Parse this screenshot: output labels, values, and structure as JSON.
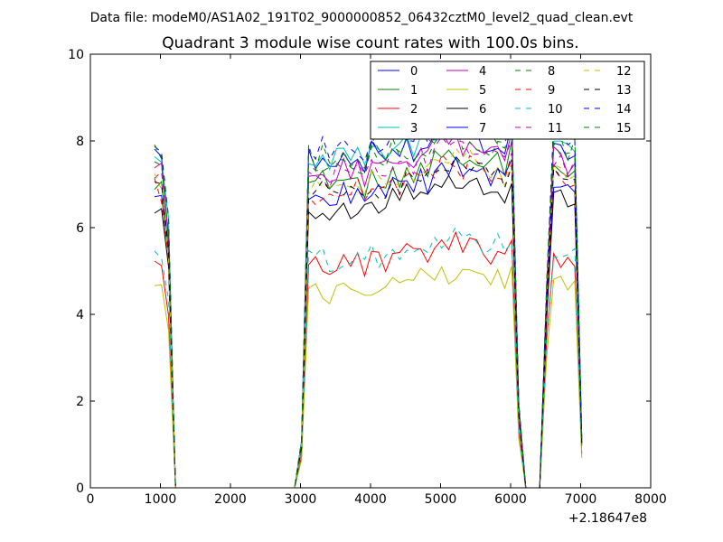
{
  "suptitle": "Data file: modeM0/AS1A02_191T02_9000000852_06432cztM0_level2_quad_clean.evt",
  "title": "Quadrant 3 module wise count rates with 100.0s bins.",
  "x_offset_label": "+2.18647e8",
  "chart_data": {
    "type": "line",
    "title": "Quadrant 3 module wise count rates with 100.0s bins.",
    "xlabel": "",
    "ylabel": "",
    "xlim": [
      0,
      8000
    ],
    "ylim": [
      0,
      10
    ],
    "x_ticks": [
      "0",
      "1000",
      "2000",
      "3000",
      "4000",
      "5000",
      "6000",
      "7000",
      "8000"
    ],
    "y_ticks": [
      "0",
      "2",
      "4",
      "6",
      "8",
      "10"
    ],
    "legend_position": "top-right",
    "grid": false,
    "segments": [
      {
        "x": [
          916,
          1016,
          1116,
          1216,
          1316
        ],
        "levels": [
          1.0,
          0.99,
          0.78,
          0.0,
          0.0
        ]
      },
      {
        "x": [
          1316,
          1416,
          1516,
          1616,
          1716,
          1816,
          1916,
          2016,
          2116,
          2216,
          2316,
          2416,
          2516,
          2616,
          2716,
          2816,
          2916
        ],
        "levels": [
          0,
          0,
          0,
          0,
          0,
          0,
          0,
          0,
          0,
          0,
          0,
          0,
          0,
          0,
          0,
          0,
          0
        ]
      },
      {
        "x": [
          2916,
          3016
        ],
        "levels": [
          0.0,
          0.14
        ]
      },
      {
        "x": [
          3016,
          3116,
          3216,
          3316,
          3416,
          3516,
          3616,
          3716,
          3816,
          3916,
          4016,
          4116,
          4216,
          4316,
          4416,
          4516,
          4616,
          4716,
          4816,
          4916,
          5016,
          5116,
          5216,
          5316,
          5416,
          5516,
          5616,
          5716,
          5816,
          5916,
          6016
        ],
        "levels": [
          0.72,
          1.0,
          0.98,
          1.0,
          0.97,
          0.99,
          1.01,
          0.98,
          1.0,
          0.97,
          1.02,
          1.0,
          0.99,
          1.03,
          1.01,
          1.04,
          1.02,
          1.05,
          1.03,
          1.06,
          1.08,
          1.07,
          1.09,
          1.06,
          1.08,
          1.07,
          1.05,
          1.04,
          1.06,
          1.03,
          1.1
        ]
      },
      {
        "x": [
          6016,
          6116,
          6216,
          6316,
          6416,
          6516,
          6616,
          6716,
          6816,
          6916,
          7016
        ],
        "levels": [
          1.1,
          0.25,
          0.0,
          0.0,
          0.0,
          0.62,
          1.05,
          1.02,
          1.01,
          1.03,
          0.15
        ]
      }
    ],
    "series": [
      {
        "name": "0",
        "color": "#0000ff",
        "dash": "solid",
        "base": 7.6
      },
      {
        "name": "1",
        "color": "#008000",
        "dash": "solid",
        "base": 7.1
      },
      {
        "name": "2",
        "color": "#ff0000",
        "dash": "solid",
        "base": 5.2
      },
      {
        "name": "3",
        "color": "#00bfbf",
        "dash": "solid",
        "base": 7.7
      },
      {
        "name": "4",
        "color": "#bf00bf",
        "dash": "solid",
        "base": 7.4
      },
      {
        "name": "5",
        "color": "#bfbf00",
        "dash": "solid",
        "base": 4.6
      },
      {
        "name": "6",
        "color": "#000000",
        "dash": "solid",
        "base": 6.5
      },
      {
        "name": "7",
        "color": "#0000ff",
        "dash": "solid",
        "base": 6.8
      },
      {
        "name": "8",
        "color": "#008000",
        "dash": "dashed",
        "base": 7.5
      },
      {
        "name": "9",
        "color": "#ff0000",
        "dash": "dashed",
        "base": 6.9
      },
      {
        "name": "10",
        "color": "#00bfbf",
        "dash": "dashed",
        "base": 5.3
      },
      {
        "name": "11",
        "color": "#bf00bf",
        "dash": "dashed",
        "base": 7.3
      },
      {
        "name": "12",
        "color": "#bfbf00",
        "dash": "dashed",
        "base": 7.0
      },
      {
        "name": "13",
        "color": "#000000",
        "dash": "dashed",
        "base": 6.9
      },
      {
        "name": "14",
        "color": "#0000ff",
        "dash": "dashed",
        "base": 7.9
      },
      {
        "name": "15",
        "color": "#008000",
        "dash": "dashed",
        "base": 7.7
      }
    ]
  }
}
